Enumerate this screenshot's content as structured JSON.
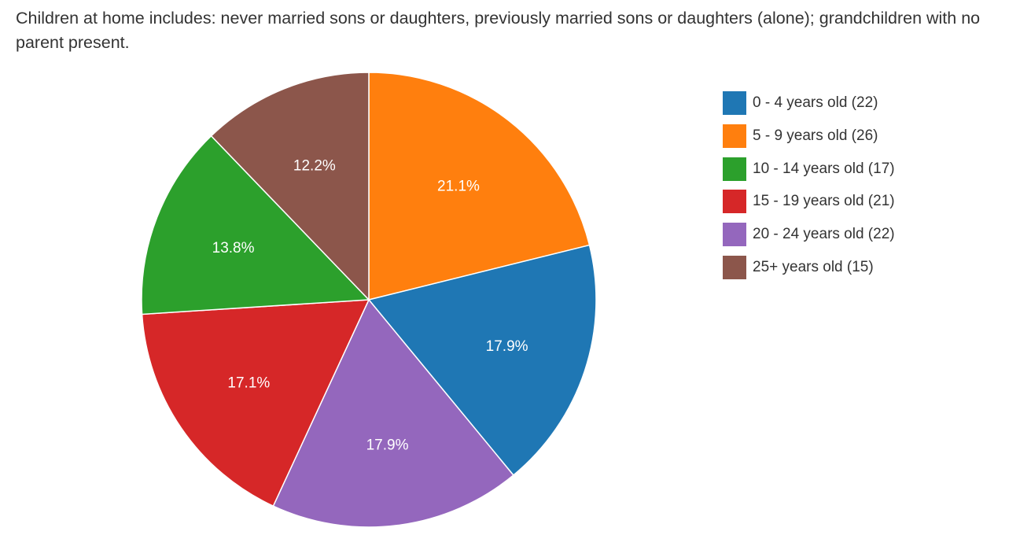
{
  "chart_data": {
    "type": "pie",
    "title": "Children at home includes: never married sons or daughters, previously married sons or daughters (alone); grandchildren with no parent present.",
    "legend_position": "right",
    "start_angle_deg": 0,
    "direction": "clockwise",
    "slices": [
      {
        "label": "5 - 9 years old (26)",
        "count": 26,
        "percent_label": "21.1%",
        "color": "#ff7f0e"
      },
      {
        "label": "0 - 4 years old (22)",
        "count": 22,
        "percent_label": "17.9%",
        "color": "#1f77b4"
      },
      {
        "label": "20 - 24 years old (22)",
        "count": 22,
        "percent_label": "17.9%",
        "color": "#9467bd"
      },
      {
        "label": "15 - 19 years old (21)",
        "count": 21,
        "percent_label": "17.1%",
        "color": "#d62728"
      },
      {
        "label": "10 - 14 years old (17)",
        "count": 17,
        "percent_label": "13.8%",
        "color": "#2ca02c"
      },
      {
        "label": "25+ years old (15)",
        "count": 15,
        "percent_label": "12.2%",
        "color": "#8c564b"
      }
    ],
    "legend": [
      {
        "label": "0 - 4 years old (22)",
        "color": "#1f77b4"
      },
      {
        "label": "5 - 9 years old (26)",
        "color": "#ff7f0e"
      },
      {
        "label": "10 - 14 years old (17)",
        "color": "#2ca02c"
      },
      {
        "label": "15 - 19 years old (21)",
        "color": "#d62728"
      },
      {
        "label": "20 - 24 years old (22)",
        "color": "#9467bd"
      },
      {
        "label": "25+ years old (15)",
        "color": "#8c564b"
      }
    ]
  }
}
